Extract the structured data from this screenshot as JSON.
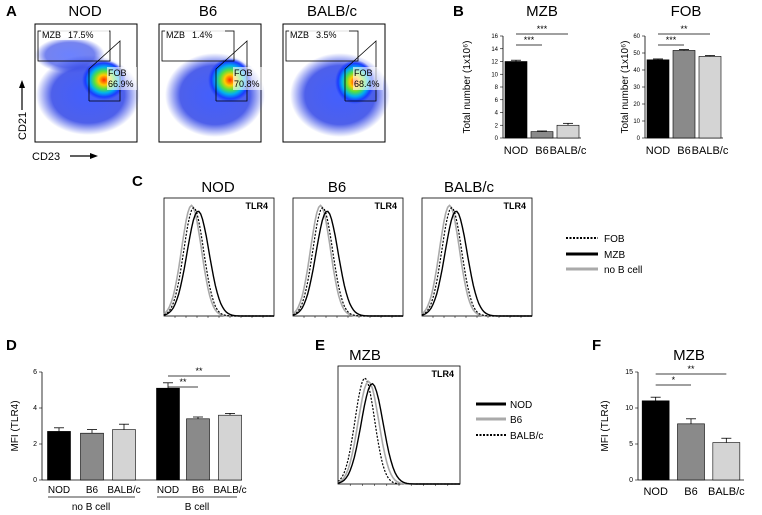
{
  "figure": {
    "panels": {
      "A": "A",
      "B": "B",
      "C": "C",
      "D": "D",
      "E": "E",
      "F": "F"
    }
  },
  "panelA": {
    "strains": [
      "NOD",
      "B6",
      "BALB/c"
    ],
    "mzb_label": "MZB",
    "fob_label": "FOB",
    "mzb_pct": [
      "17.5%",
      "1.4%",
      "3.5%"
    ],
    "fob_pct": [
      "66.9%",
      "70.8%",
      "68.4%"
    ],
    "yaxis": "CD21",
    "xaxis": "CD23"
  },
  "panelC": {
    "strains": [
      "NOD",
      "B6",
      "BALB/c"
    ],
    "marker": "TLR4",
    "legend": [
      "FOB",
      "MZB",
      "no B cell"
    ]
  },
  "panelE": {
    "title": "MZB",
    "marker": "TLR4",
    "legend": [
      "NOD",
      "B6",
      "BALB/c"
    ]
  },
  "groups": {
    "no_b": "no B cell",
    "b": "B cell"
  },
  "chart_data": [
    {
      "id": "B-MZB",
      "type": "bar",
      "title": "MZB",
      "ylabel": "Total number (1x10⁶)",
      "categories": [
        "NOD",
        "B6",
        "BALB/c"
      ],
      "values": [
        12,
        1,
        2
      ],
      "errors": [
        0.2,
        0.1,
        0.3
      ],
      "colors": [
        "#000000",
        "#8a8a8a",
        "#d4d4d4"
      ],
      "ylim": [
        0,
        16
      ],
      "yticks": [
        0,
        2,
        4,
        6,
        8,
        10,
        12,
        14,
        16
      ],
      "sig": [
        {
          "from": 0,
          "to": 1,
          "label": "***"
        },
        {
          "from": 0,
          "to": 2,
          "label": "***"
        }
      ]
    },
    {
      "id": "B-FOB",
      "type": "bar",
      "title": "FOB",
      "ylabel": "Total number (1x10⁶)",
      "categories": [
        "NOD",
        "B6",
        "BALB/c"
      ],
      "values": [
        46,
        51.5,
        48
      ],
      "errors": [
        0.5,
        0.5,
        0.5
      ],
      "colors": [
        "#000000",
        "#8a8a8a",
        "#d4d4d4"
      ],
      "ylim": [
        0,
        60
      ],
      "yticks": [
        0,
        10,
        20,
        30,
        40,
        50,
        60
      ],
      "sig": [
        {
          "from": 0,
          "to": 1,
          "label": "***"
        },
        {
          "from": 0,
          "to": 2,
          "label": "**"
        }
      ]
    },
    {
      "id": "D",
      "type": "bar",
      "title": "",
      "ylabel": "MFI (TLR4)",
      "categories": [
        "NOD",
        "B6",
        "BALB/c",
        "NOD",
        "B6",
        "BALB/c"
      ],
      "values": [
        2.7,
        2.6,
        2.8,
        5.1,
        3.4,
        3.6
      ],
      "errors": [
        0.2,
        0.2,
        0.3,
        0.3,
        0.1,
        0.1
      ],
      "colors": [
        "#000000",
        "#8a8a8a",
        "#d4d4d4",
        "#000000",
        "#8a8a8a",
        "#d4d4d4"
      ],
      "ylim": [
        0,
        6
      ],
      "yticks": [
        0,
        2,
        4,
        6
      ],
      "sig": [
        {
          "from": 3,
          "to": 4,
          "label": "**"
        },
        {
          "from": 3,
          "to": 5,
          "label": "**"
        }
      ]
    },
    {
      "id": "F",
      "type": "bar",
      "title": "MZB",
      "ylabel": "MFI (TLR4)",
      "categories": [
        "NOD",
        "B6",
        "BALB/c"
      ],
      "values": [
        11,
        7.8,
        5.2
      ],
      "errors": [
        0.5,
        0.7,
        0.6
      ],
      "colors": [
        "#000000",
        "#8a8a8a",
        "#d4d4d4"
      ],
      "ylim": [
        0,
        15
      ],
      "yticks": [
        0,
        5,
        10,
        15
      ],
      "sig": [
        {
          "from": 0,
          "to": 1,
          "label": "*"
        },
        {
          "from": 0,
          "to": 2,
          "label": "**"
        }
      ]
    }
  ]
}
